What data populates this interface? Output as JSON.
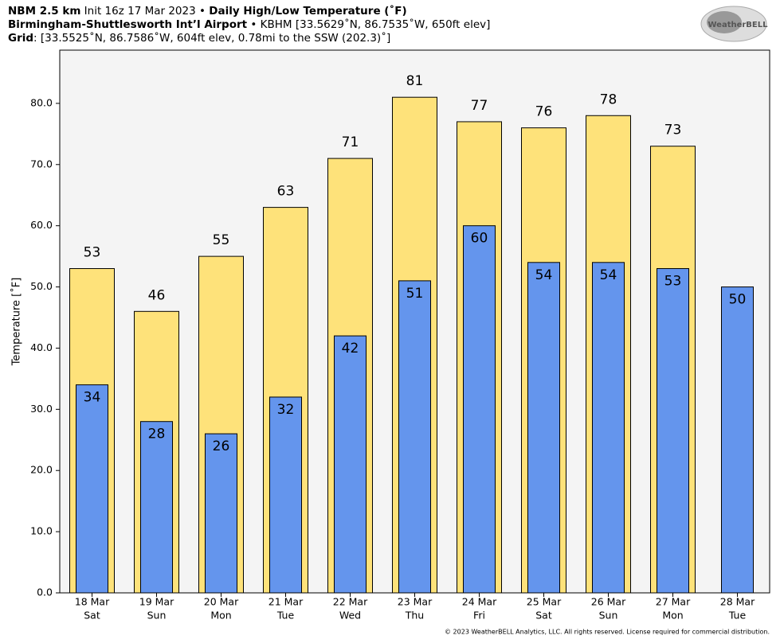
{
  "chart_data": {
    "type": "bar",
    "title_lines": [
      [
        {
          "text": "NBM 2.5 km",
          "bold": true
        },
        {
          "text": " Init 16z 17 Mar 2023 • ",
          "bold": false
        },
        {
          "text": "Daily High/Low Temperature (˚F)",
          "bold": true
        }
      ],
      [
        {
          "text": "Birmingham-Shuttlesworth Int’l Airport",
          "bold": true
        },
        {
          "text": " • KBHM [33.5629˚N, 86.7535˚W, 650ft elev]",
          "bold": false
        }
      ],
      [
        {
          "text": "Grid",
          "bold": true
        },
        {
          "text": ": [33.5525˚N, 86.7586˚W, 604ft elev, 0.78mi to the SSW (202.3)˚]",
          "bold": false
        }
      ]
    ],
    "logo": "WeatherBELL",
    "footer": "© 2023 WeatherBELL Analytics, LLC. All rights reserved. License required for commercial distribution.",
    "y_label": "Temperature [˚F]",
    "categories": [
      "18 Mar",
      "19 Mar",
      "20 Mar",
      "21 Mar",
      "22 Mar",
      "23 Mar",
      "24 Mar",
      "25 Mar",
      "26 Mar",
      "27 Mar",
      "28 Mar"
    ],
    "weekdays": [
      "Sat",
      "Sun",
      "Mon",
      "Tue",
      "Wed",
      "Thu",
      "Fri",
      "Sat",
      "Sun",
      "Mon",
      "Tue"
    ],
    "series": [
      {
        "name": "High",
        "color": "#fee27a",
        "values": [
          53,
          46,
          55,
          63,
          71,
          81,
          77,
          76,
          78,
          73,
          null
        ]
      },
      {
        "name": "Low",
        "color": "#6495ed",
        "values": [
          34,
          28,
          26,
          32,
          42,
          51,
          60,
          54,
          54,
          53,
          50
        ]
      }
    ],
    "ylim": [
      0,
      88.7
    ],
    "yticks": [
      {
        "value": 0,
        "label": "0.0"
      },
      {
        "value": 10,
        "label": "10.0"
      },
      {
        "value": 20,
        "label": "20.0"
      },
      {
        "value": 30,
        "label": "30.0"
      },
      {
        "value": 40,
        "label": "40.0"
      },
      {
        "value": 50,
        "label": "50.0"
      },
      {
        "value": 60,
        "label": "60.0"
      },
      {
        "value": 70,
        "label": "70.0"
      },
      {
        "value": 80,
        "label": "80.0"
      }
    ],
    "plot_background": "#f4f4f4"
  }
}
